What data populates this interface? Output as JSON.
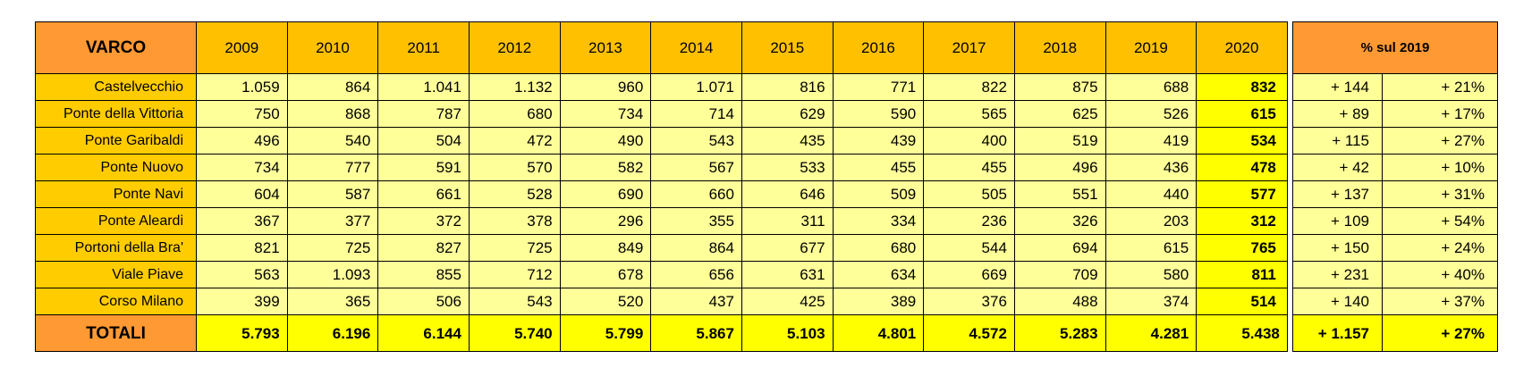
{
  "header": {
    "varco": "VARCO",
    "years": [
      "2009",
      "2010",
      "2011",
      "2012",
      "2013",
      "2014",
      "2015",
      "2016",
      "2017",
      "2018",
      "2019",
      "2020"
    ],
    "pct_title": "% sul 2019"
  },
  "rows": [
    {
      "name": "Castelvecchio",
      "values": [
        "1.059",
        "864",
        "1.041",
        "1.132",
        "960",
        "1.071",
        "816",
        "771",
        "822",
        "875",
        "688",
        "832"
      ],
      "diff": "+ 144",
      "pct": "+ 21%"
    },
    {
      "name": "Ponte della Vittoria",
      "values": [
        "750",
        "868",
        "787",
        "680",
        "734",
        "714",
        "629",
        "590",
        "565",
        "625",
        "526",
        "615"
      ],
      "diff": "+ 89",
      "pct": "+ 17%"
    },
    {
      "name": "Ponte Garibaldi",
      "values": [
        "496",
        "540",
        "504",
        "472",
        "490",
        "543",
        "435",
        "439",
        "400",
        "519",
        "419",
        "534"
      ],
      "diff": "+ 115",
      "pct": "+ 27%"
    },
    {
      "name": "Ponte Nuovo",
      "values": [
        "734",
        "777",
        "591",
        "570",
        "582",
        "567",
        "533",
        "455",
        "455",
        "496",
        "436",
        "478"
      ],
      "diff": "+ 42",
      "pct": "+ 10%"
    },
    {
      "name": "Ponte Navi",
      "values": [
        "604",
        "587",
        "661",
        "528",
        "690",
        "660",
        "646",
        "509",
        "505",
        "551",
        "440",
        "577"
      ],
      "diff": "+ 137",
      "pct": "+ 31%"
    },
    {
      "name": "Ponte Aleardi",
      "values": [
        "367",
        "377",
        "372",
        "378",
        "296",
        "355",
        "311",
        "334",
        "236",
        "326",
        "203",
        "312"
      ],
      "diff": "+ 109",
      "pct": "+ 54%"
    },
    {
      "name": "Portoni della Bra'",
      "values": [
        "821",
        "725",
        "827",
        "725",
        "849",
        "864",
        "677",
        "680",
        "544",
        "694",
        "615",
        "765"
      ],
      "diff": "+ 150",
      "pct": "+ 24%"
    },
    {
      "name": "Viale Piave",
      "values": [
        "563",
        "1.093",
        "855",
        "712",
        "678",
        "656",
        "631",
        "634",
        "669",
        "709",
        "580",
        "811"
      ],
      "diff": "+ 231",
      "pct": "+ 40%"
    },
    {
      "name": "Corso Milano",
      "values": [
        "399",
        "365",
        "506",
        "543",
        "520",
        "437",
        "425",
        "389",
        "376",
        "488",
        "374",
        "514"
      ],
      "diff": "+ 140",
      "pct": "+ 37%"
    }
  ],
  "totals": {
    "name": "TOTALI",
    "values": [
      "5.793",
      "6.196",
      "6.144",
      "5.740",
      "5.799",
      "5.867",
      "5.103",
      "4.801",
      "4.572",
      "5.283",
      "4.281",
      "5.438"
    ],
    "diff": "+ 1.157",
    "pct": "+ 27%"
  }
}
